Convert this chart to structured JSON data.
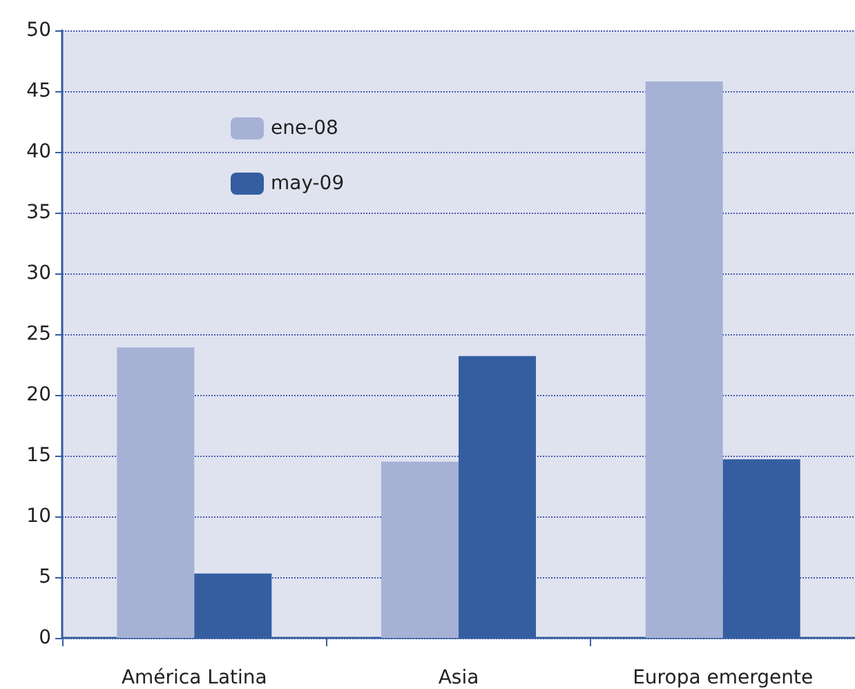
{
  "chart_data": {
    "type": "bar",
    "categories": [
      "América Latina",
      "Asia",
      "Europa emergente"
    ],
    "series": [
      {
        "name": "ene-08",
        "color": "#a6b1d6",
        "values": [
          23.9,
          14.5,
          45.8
        ]
      },
      {
        "name": "may-09",
        "color": "#345ea0",
        "values": [
          5.3,
          23.2,
          14.7
        ]
      }
    ],
    "ylim": [
      0,
      50
    ],
    "yticks": [
      0,
      5,
      10,
      15,
      20,
      25,
      30,
      35,
      40,
      45,
      50
    ],
    "grid": "y",
    "legend": "top left"
  }
}
